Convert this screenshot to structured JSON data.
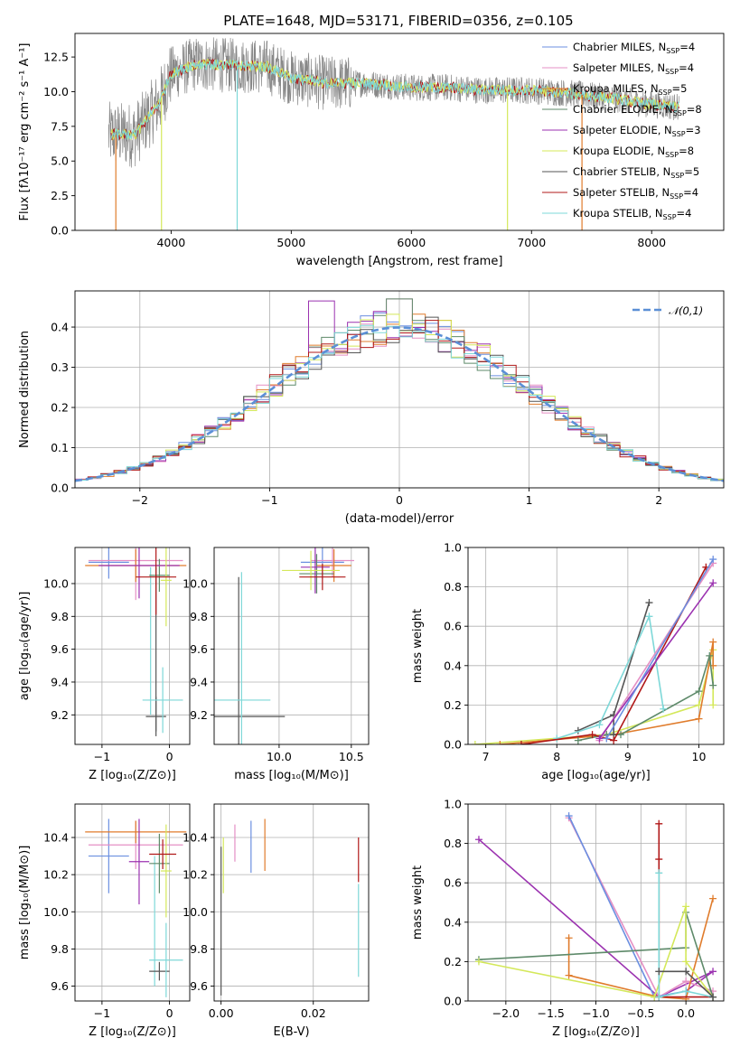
{
  "figure_title": "PLATE=1648, MJD=53171, FIBERID=0356, z=0.105",
  "colors": {
    "cm": "#6b8fe0",
    "sm": "#e58fc4",
    "km": "#e07c2c",
    "ce": "#5e8a6a",
    "se": "#9b32b0",
    "ke": "#d4e85a",
    "cs": "#555555",
    "ss": "#b01818",
    "ks": "#7ed8d8",
    "normal": "#5b8fd6"
  },
  "legend_spectrum": [
    {
      "key": "cm",
      "label": "Chabrier MILES, N",
      "sub": "SSP",
      "suffix": "=4"
    },
    {
      "key": "sm",
      "label": "Salpeter MILES, N",
      "sub": "SSP",
      "suffix": "=4"
    },
    {
      "key": "km",
      "label": "Kroupa MILES, N",
      "sub": "SSP",
      "suffix": "=5"
    },
    {
      "key": "ce",
      "label": "Chabrier ELODIE, N",
      "sub": "SSP",
      "suffix": "=8"
    },
    {
      "key": "se",
      "label": "Salpeter ELODIE, N",
      "sub": "SSP",
      "suffix": "=3"
    },
    {
      "key": "ke",
      "label": "Kroupa ELODIE, N",
      "sub": "SSP",
      "suffix": "=8"
    },
    {
      "key": "cs",
      "label": "Chabrier STELIB, N",
      "sub": "SSP",
      "suffix": "=5"
    },
    {
      "key": "ss",
      "label": "Salpeter STELIB, N",
      "sub": "SSP",
      "suffix": "=4"
    },
    {
      "key": "ks",
      "label": "Kroupa STELIB, N",
      "sub": "SSP",
      "suffix": "=4"
    }
  ],
  "chart_data": [
    {
      "id": "spectrum",
      "type": "line",
      "title": "PLATE=1648, MJD=53171, FIBERID=0356, z=0.105",
      "xlabel": "wavelength [Angstrom, rest frame]",
      "ylabel": "Flux [fλ10⁻¹⁷ erg cm⁻² s⁻¹ A⁻¹]",
      "xlim": [
        3200,
        8600
      ],
      "ylim": [
        0,
        14.2
      ],
      "xticks": [
        4000,
        5000,
        6000,
        7000,
        8000
      ],
      "yticks": [
        0.0,
        2.5,
        5.0,
        7.5,
        10.0,
        12.5
      ],
      "ytick_labels": [
        "0.0",
        "2.5",
        "5.0",
        "7.5",
        "10.0",
        "12.5"
      ],
      "continuum": {
        "x": [
          3500,
          3700,
          3900,
          4000,
          4200,
          4500,
          4800,
          5000,
          5300,
          5600,
          6000,
          6300,
          6600,
          7000,
          7300,
          7600,
          7900,
          8200
        ],
        "y": [
          6.9,
          6.9,
          9.2,
          11.3,
          12.0,
          11.9,
          11.8,
          11.0,
          10.6,
          10.6,
          10.3,
          10.3,
          10.1,
          10.1,
          9.9,
          9.6,
          9.2,
          8.9
        ]
      },
      "data_x_range": [
        3480,
        8230
      ],
      "dips": [
        {
          "key": "km",
          "x": 3540,
          "y": 0
        },
        {
          "key": "ke",
          "x": 3920,
          "y": 0
        },
        {
          "key": "ks",
          "x": 4550,
          "y": 0
        },
        {
          "key": "ke",
          "x": 6800,
          "y": 0
        },
        {
          "key": "km",
          "x": 7420,
          "y": 0
        }
      ],
      "grid": false,
      "legend": "right"
    },
    {
      "id": "residuals",
      "type": "histogram",
      "xlabel": "(data-model)/error",
      "ylabel": "Normed distribution",
      "xlim": [
        -2.5,
        2.5
      ],
      "ylim": [
        0,
        0.49
      ],
      "xticks": [
        -2,
        -1,
        0,
        1,
        2
      ],
      "xtick_labels": [
        "−2",
        "−1",
        "0",
        "1",
        "2"
      ],
      "yticks": [
        0.0,
        0.1,
        0.2,
        0.3,
        0.4
      ],
      "ytick_labels": [
        "0.0",
        "0.1",
        "0.2",
        "0.3",
        "0.4"
      ],
      "bin_width": 0.1,
      "peak_heights": {
        "ce": 0.47,
        "se": 0.465,
        "sm": 0.47
      },
      "legend_label": "𝒩(0,1)",
      "grid": true,
      "legend": "top-right"
    },
    {
      "id": "age_vs_Z",
      "type": "errorbar",
      "xlabel": "Z [log₁₀(Z/Z⊙)]",
      "ylabel": "age  [log₁₀(age/yr)]",
      "xlim": [
        -1.4,
        0.3
      ],
      "ylim": [
        9.02,
        10.22
      ],
      "xticks": [
        -1,
        0
      ],
      "xtick_labels": [
        "−1",
        "0"
      ],
      "yticks": [
        9.2,
        9.4,
        9.6,
        9.8,
        10.0
      ],
      "ytick_labels": [
        "9.2",
        "9.4",
        "9.6",
        "9.8",
        "10.0"
      ],
      "points": [
        {
          "key": "cm",
          "x": -0.9,
          "xerr": 0.3,
          "y": 10.13,
          "yerr": 0.1
        },
        {
          "key": "sm",
          "x": -0.5,
          "xerr": 0.7,
          "y": 10.14,
          "yerr": 0.24
        },
        {
          "key": "km",
          "x": -0.5,
          "xerr": 0.75,
          "y": 10.11,
          "yerr": 0.1
        },
        {
          "key": "ce",
          "x": -0.15,
          "xerr": 0.15,
          "y": 10.05,
          "yerr": 0.1
        },
        {
          "key": "se",
          "x": -0.45,
          "xerr": 0.6,
          "y": 10.11,
          "yerr": 0.2
        },
        {
          "key": "ke",
          "x": -0.05,
          "xerr": 0.08,
          "y": 10.02,
          "yerr": 0.28
        },
        {
          "key": "cs",
          "x": -0.2,
          "xerr": 0.15,
          "y": 9.19,
          "yerr": 0.12
        },
        {
          "key": "ss",
          "x": -0.2,
          "xerr": 0.3,
          "y": 10.04,
          "yerr": 0.23
        },
        {
          "key": "ks",
          "x": -0.1,
          "xerr": 0.3,
          "y": 9.29,
          "yerr": 0.2
        }
      ],
      "extra_lines": [
        {
          "key": "cs",
          "x": -0.2,
          "y0": 9.1,
          "y1": 10.1
        },
        {
          "key": "ks",
          "x": -0.28,
          "y0": 9.2,
          "y1": 10.1
        }
      ]
    },
    {
      "id": "age_vs_mass",
      "type": "errorbar",
      "xlabel": "mass [log₁₀(M/M⊙)]",
      "ylabel": "",
      "xlim": [
        9.55,
        10.62
      ],
      "ylim": [
        9.02,
        10.22
      ],
      "xticks": [
        10.0,
        10.5
      ],
      "xtick_labels": [
        "10.0",
        "10.5"
      ],
      "yticks": [
        9.2,
        9.4,
        9.6,
        9.8,
        10.0
      ],
      "ytick_labels": [
        "9.2",
        "9.4",
        "9.6",
        "9.8",
        "10.0"
      ],
      "points": [
        {
          "key": "cm",
          "x": 10.3,
          "xerr": 0.15,
          "y": 10.13,
          "yerr": 0.1
        },
        {
          "key": "sm",
          "x": 10.37,
          "xerr": 0.15,
          "y": 10.14,
          "yerr": 0.1
        },
        {
          "key": "km",
          "x": 10.38,
          "xerr": 0.12,
          "y": 10.11,
          "yerr": 0.1
        },
        {
          "key": "ce",
          "x": 10.26,
          "xerr": 0.12,
          "y": 10.06,
          "yerr": 0.12
        },
        {
          "key": "se",
          "x": 10.25,
          "xerr": 0.1,
          "y": 10.1,
          "yerr": 0.16
        },
        {
          "key": "ke",
          "x": 10.22,
          "xerr": 0.2,
          "y": 10.08,
          "yerr": 0.12
        },
        {
          "key": "cs",
          "x": 9.72,
          "xerr": 0.32,
          "y": 9.19,
          "yerr": 0.85
        },
        {
          "key": "ss",
          "x": 10.3,
          "xerr": 0.16,
          "y": 10.04,
          "yerr": 0.08
        },
        {
          "key": "ks",
          "x": 9.74,
          "xerr": 0.2,
          "y": 9.29,
          "yerr": 0.78
        }
      ],
      "extra_lines": []
    },
    {
      "id": "mass_weight_vs_age",
      "type": "line",
      "xlabel": "age  [log₁₀(age/yr)]",
      "ylabel": "mass weight",
      "xlim": [
        6.75,
        10.35
      ],
      "ylim": [
        0,
        1.0
      ],
      "xticks": [
        7,
        8,
        9,
        10
      ],
      "xtick_labels": [
        "7",
        "8",
        "9",
        "10"
      ],
      "yticks": [
        0.0,
        0.2,
        0.4,
        0.6,
        0.8,
        1.0
      ],
      "ytick_labels": [
        "0.0",
        "0.2",
        "0.4",
        "0.6",
        "0.8",
        "1.0"
      ],
      "series": [
        {
          "key": "ke",
          "x": [
            6.85,
            8.7,
            10.0,
            10.2,
            10.2
          ],
          "y": [
            0.0,
            0.05,
            0.2,
            0.48,
            0.2
          ]
        },
        {
          "key": "km",
          "x": [
            7.2,
            8.8,
            10.0,
            10.2,
            10.2
          ],
          "y": [
            0.0,
            0.05,
            0.13,
            0.52,
            0.4
          ]
        },
        {
          "key": "ce",
          "x": [
            8.3,
            8.7,
            8.9,
            10.0,
            10.15,
            10.2
          ],
          "y": [
            0.02,
            0.05,
            0.05,
            0.27,
            0.45,
            0.3
          ]
        },
        {
          "key": "cs",
          "x": [
            8.3,
            8.8,
            9.3,
            8.8,
            8.8
          ],
          "y": [
            0.07,
            0.15,
            0.72,
            0.15,
            0.05
          ]
        },
        {
          "key": "ks",
          "x": [
            8.0,
            8.6,
            9.3,
            9.5
          ],
          "y": [
            0.03,
            0.1,
            0.65,
            0.18
          ]
        },
        {
          "key": "ss",
          "x": [
            7.5,
            8.5,
            8.8,
            10.1
          ],
          "y": [
            0.0,
            0.05,
            0.02,
            0.9
          ]
        },
        {
          "key": "sm",
          "x": [
            8.6,
            10.2
          ],
          "y": [
            0.02,
            0.92
          ]
        },
        {
          "key": "se",
          "x": [
            8.6,
            10.2
          ],
          "y": [
            0.03,
            0.82
          ]
        },
        {
          "key": "cm",
          "x": [
            8.7,
            10.2
          ],
          "y": [
            0.03,
            0.94
          ]
        }
      ]
    },
    {
      "id": "mass_vs_Z",
      "type": "errorbar",
      "xlabel": "Z [log₁₀(Z/Z⊙)]",
      "ylabel": "mass [log₁₀(M/M⊙)]",
      "xlim": [
        -1.4,
        0.3
      ],
      "ylim": [
        9.52,
        10.58
      ],
      "xticks": [
        -1,
        0
      ],
      "xtick_labels": [
        "−1",
        "0"
      ],
      "yticks": [
        9.6,
        9.8,
        10.0,
        10.2,
        10.4
      ],
      "ytick_labels": [
        "9.6",
        "9.8",
        "10.0",
        "10.2",
        "10.4"
      ],
      "points": [
        {
          "key": "cm",
          "x": -0.9,
          "xerr": 0.3,
          "y": 10.3,
          "yerr": 0.2
        },
        {
          "key": "sm",
          "x": -0.5,
          "xerr": 0.7,
          "y": 10.36,
          "yerr": 0.13
        },
        {
          "key": "km",
          "x": -0.5,
          "xerr": 0.75,
          "y": 10.43,
          "yerr": 0.06
        },
        {
          "key": "ce",
          "x": -0.15,
          "xerr": 0.15,
          "y": 10.26,
          "yerr": 0.16
        },
        {
          "key": "se",
          "x": -0.45,
          "xerr": 0.15,
          "y": 10.27,
          "yerr": 0.23
        },
        {
          "key": "ke",
          "x": -0.05,
          "xerr": 0.08,
          "y": 10.22,
          "yerr": 0.25
        },
        {
          "key": "cs",
          "x": -0.15,
          "xerr": 0.15,
          "y": 9.68,
          "yerr": 0.05
        },
        {
          "key": "ss",
          "x": -0.1,
          "xerr": 0.2,
          "y": 10.31,
          "yerr": 0.08
        },
        {
          "key": "ks",
          "x": -0.05,
          "xerr": 0.25,
          "y": 9.74,
          "yerr": 0.2
        }
      ],
      "extra_lines": [
        {
          "key": "ks",
          "x": -0.22,
          "y0": 9.6,
          "y1": 10.3
        }
      ]
    },
    {
      "id": "mass_vs_EBV",
      "type": "errorbar",
      "xlabel": "E(B-V)",
      "ylabel": "",
      "xlim": [
        -0.0015,
        0.032
      ],
      "ylim": [
        9.52,
        10.58
      ],
      "xticks": [
        0.0,
        0.02
      ],
      "xtick_labels": [
        "0.00",
        "0.02"
      ],
      "yticks": [
        9.6,
        9.8,
        10.0,
        10.2,
        10.4
      ],
      "ytick_labels": [
        "9.6",
        "9.8",
        "10.0",
        "10.2",
        "10.4"
      ],
      "points": [
        {
          "key": "cs",
          "x": 0.0,
          "xerr": 0,
          "y": 9.95,
          "yerr": 0.4
        },
        {
          "key": "ke",
          "x": 0.0005,
          "xerr": 0,
          "y": 10.25,
          "yerr": 0.15
        },
        {
          "key": "sm",
          "x": 0.003,
          "xerr": 0,
          "y": 10.37,
          "yerr": 0.1
        },
        {
          "key": "cm",
          "x": 0.0065,
          "xerr": 0,
          "y": 10.35,
          "yerr": 0.14
        },
        {
          "key": "km",
          "x": 0.0095,
          "xerr": 0,
          "y": 10.36,
          "yerr": 0.14
        },
        {
          "key": "ss",
          "x": 0.0298,
          "xerr": 0,
          "y": 10.28,
          "yerr": 0.12
        },
        {
          "key": "ks",
          "x": 0.0298,
          "xerr": 0,
          "y": 9.9,
          "yerr": 0.25
        }
      ],
      "extra_lines": []
    },
    {
      "id": "mass_weight_vs_Z",
      "type": "line",
      "xlabel": "Z [log₁₀(Z/Z⊙)]",
      "ylabel": "mass weight",
      "xlim": [
        -2.42,
        0.42
      ],
      "ylim": [
        0,
        1.0
      ],
      "xticks": [
        -2.0,
        -1.5,
        -1.0,
        -0.5,
        0.0
      ],
      "xtick_labels": [
        "−2.0",
        "−1.5",
        "−1.0",
        "−0.5",
        "0.0"
      ],
      "yticks": [
        0.0,
        0.2,
        0.4,
        0.6,
        0.8,
        1.0
      ],
      "ytick_labels": [
        "0.0",
        "0.2",
        "0.4",
        "0.6",
        "0.8",
        "1.0"
      ],
      "series": [
        {
          "key": "se",
          "x": [
            -2.3,
            -0.3,
            0.3,
            0.0
          ],
          "y": [
            0.82,
            0.02,
            0.15,
            0.05
          ]
        },
        {
          "key": "sm",
          "x": [
            -1.3,
            -0.3,
            0.0,
            0.3
          ],
          "y": [
            0.93,
            0.02,
            0.1,
            0.05
          ]
        },
        {
          "key": "cm",
          "x": [
            -1.3,
            -0.35,
            0.0
          ],
          "y": [
            0.94,
            0.02,
            0.05
          ]
        },
        {
          "key": "km",
          "x": [
            -1.3,
            -1.3,
            -0.3,
            0.0,
            0.3
          ],
          "y": [
            0.32,
            0.13,
            0.02,
            0.01,
            0.52
          ]
        },
        {
          "key": "ce",
          "x": [
            -2.3,
            -0.0,
            0.0,
            0.3
          ],
          "y": [
            0.21,
            0.27,
            0.45,
            0.02
          ]
        },
        {
          "key": "ke",
          "x": [
            -2.3,
            -0.35,
            0.0,
            0.0,
            0.3
          ],
          "y": [
            0.2,
            0.02,
            0.48,
            0.2,
            0.02
          ]
        },
        {
          "key": "ss",
          "x": [
            -0.3,
            -0.3,
            -0.3,
            0.3
          ],
          "y": [
            0.9,
            0.72,
            0.02,
            0.02
          ]
        },
        {
          "key": "ks",
          "x": [
            -0.3,
            -0.3,
            0.0,
            0.3
          ],
          "y": [
            0.65,
            0.02,
            0.05,
            0.02
          ]
        },
        {
          "key": "cs",
          "x": [
            -0.3,
            0.0,
            0.3
          ],
          "y": [
            0.15,
            0.15,
            0.02
          ]
        }
      ]
    }
  ]
}
